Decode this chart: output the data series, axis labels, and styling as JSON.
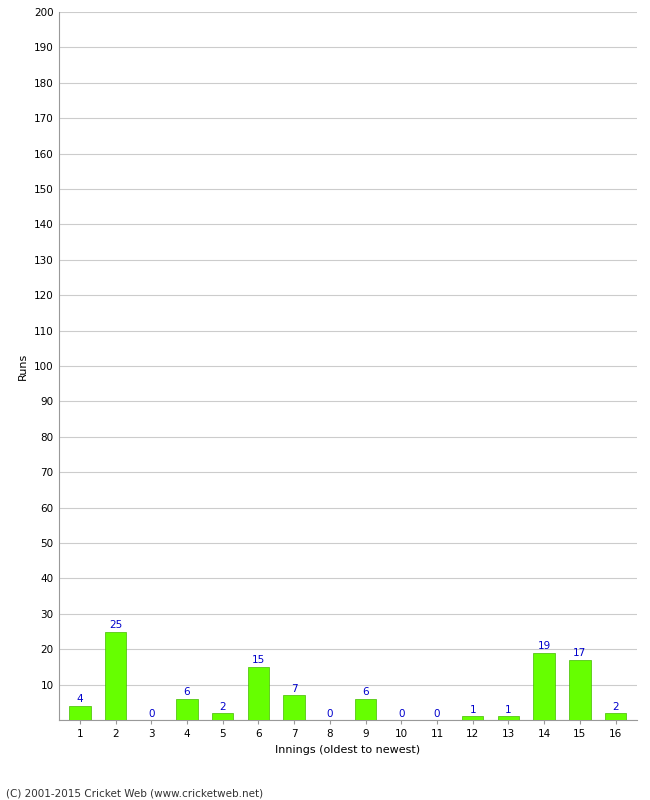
{
  "xlabel": "Innings (oldest to newest)",
  "ylabel": "Runs",
  "categories": [
    1,
    2,
    3,
    4,
    5,
    6,
    7,
    8,
    9,
    10,
    11,
    12,
    13,
    14,
    15,
    16
  ],
  "values": [
    4,
    25,
    0,
    6,
    2,
    15,
    7,
    0,
    6,
    0,
    0,
    1,
    1,
    19,
    17,
    2
  ],
  "bar_color": "#66ff00",
  "bar_edge_color": "#44bb00",
  "label_color": "#0000cc",
  "ylim": [
    0,
    200
  ],
  "yticks": [
    0,
    10,
    20,
    30,
    40,
    50,
    60,
    70,
    80,
    90,
    100,
    110,
    120,
    130,
    140,
    150,
    160,
    170,
    180,
    190,
    200
  ],
  "grid_color": "#cccccc",
  "background_color": "#ffffff",
  "footer": "(C) 2001-2015 Cricket Web (www.cricketweb.net)",
  "label_fontsize": 7.5,
  "axis_label_fontsize": 8,
  "tick_fontsize": 7.5,
  "footer_fontsize": 7.5
}
